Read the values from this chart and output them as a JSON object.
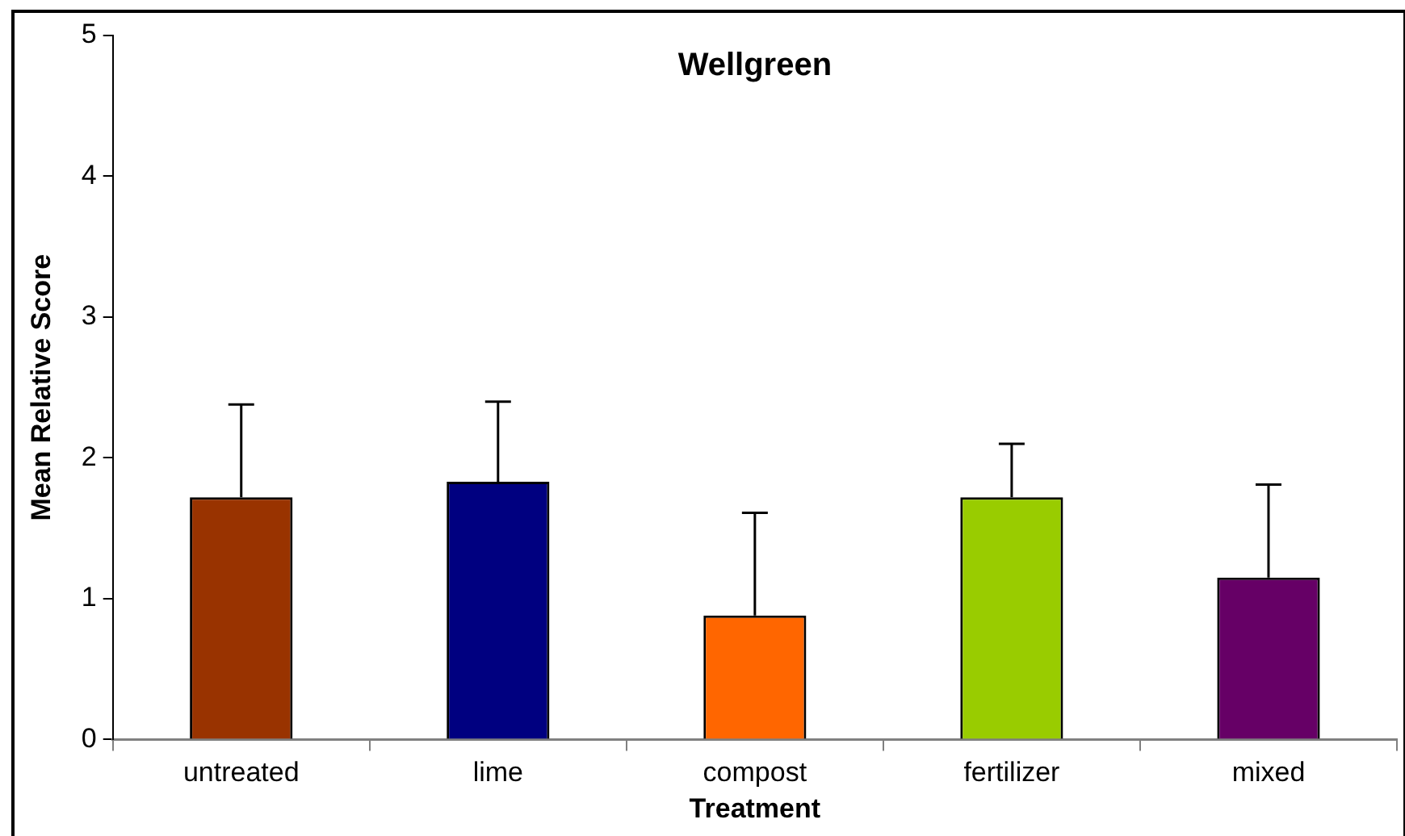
{
  "chart_data": {
    "type": "bar",
    "title": "Wellgreen",
    "xlabel": "Treatment",
    "ylabel": "Mean Relative Score",
    "categories": [
      "untreated",
      "lime",
      "compost",
      "fertilizer",
      "mixed"
    ],
    "values": [
      1.72,
      1.83,
      0.88,
      1.72,
      1.15
    ],
    "colors": [
      "#993300",
      "#000080",
      "#ff6600",
      "#99cc00",
      "#660066"
    ],
    "errors": [
      [
        1.72,
        2.38
      ],
      [
        1.83,
        2.4
      ],
      [
        0.88,
        1.61
      ],
      [
        1.72,
        2.1
      ],
      [
        1.15,
        1.81
      ]
    ],
    "ylim": [
      0,
      5
    ],
    "yticks": [
      0,
      1,
      2,
      3,
      4,
      5
    ],
    "grid": false,
    "legend": false
  }
}
